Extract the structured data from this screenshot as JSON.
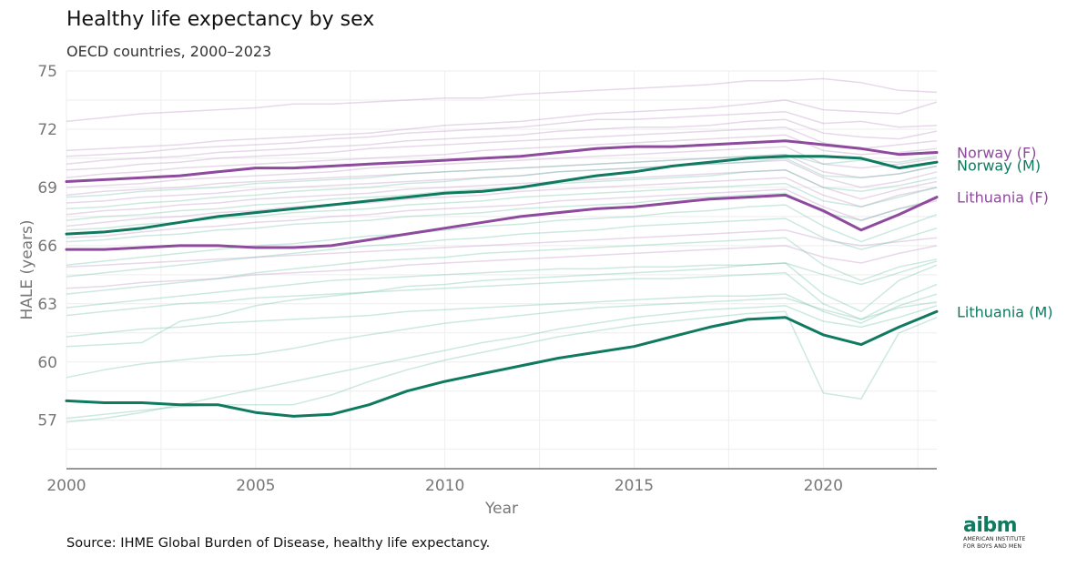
{
  "chart_data": {
    "type": "line",
    "title": "Healthy life expectancy by sex",
    "subtitle": "OECD countries, 2000–2023",
    "xlabel": "Year",
    "ylabel": "HALE (years)",
    "xlim": [
      2000,
      2023
    ],
    "ylim": [
      54.5,
      75
    ],
    "x_ticks": [
      2000,
      2005,
      2010,
      2015,
      2020
    ],
    "y_ticks": [
      57,
      60,
      63,
      66,
      69,
      72,
      75
    ],
    "grid": true,
    "x": [
      2000,
      2001,
      2002,
      2003,
      2004,
      2005,
      2006,
      2007,
      2008,
      2009,
      2010,
      2011,
      2012,
      2013,
      2014,
      2015,
      2016,
      2017,
      2018,
      2019,
      2020,
      2021,
      2022,
      2023
    ],
    "highlighted_series": [
      {
        "name": "Norway (F)",
        "color": "#8e4a9c",
        "values": [
          69.3,
          69.4,
          69.5,
          69.6,
          69.8,
          70.0,
          70.0,
          70.1,
          70.2,
          70.3,
          70.4,
          70.5,
          70.6,
          70.8,
          71.0,
          71.1,
          71.1,
          71.2,
          71.3,
          71.4,
          71.2,
          71.0,
          70.7,
          70.8
        ]
      },
      {
        "name": "Norway (M)",
        "color": "#0f7a5f",
        "values": [
          66.6,
          66.7,
          66.9,
          67.2,
          67.5,
          67.7,
          67.9,
          68.1,
          68.3,
          68.5,
          68.7,
          68.8,
          69.0,
          69.3,
          69.6,
          69.8,
          70.1,
          70.3,
          70.5,
          70.6,
          70.6,
          70.5,
          70.0,
          70.3
        ]
      },
      {
        "name": "Lithuania (F)",
        "color": "#8e4a9c",
        "values": [
          65.8,
          65.8,
          65.9,
          66.0,
          66.0,
          65.9,
          65.9,
          66.0,
          66.3,
          66.6,
          66.9,
          67.2,
          67.5,
          67.7,
          67.9,
          68.0,
          68.2,
          68.4,
          68.5,
          68.6,
          67.8,
          66.8,
          67.6,
          68.5
        ]
      },
      {
        "name": "Lithuania (M)",
        "color": "#0f7a5f",
        "values": [
          58.0,
          57.9,
          57.9,
          57.8,
          57.8,
          57.4,
          57.2,
          57.3,
          57.8,
          58.5,
          59.0,
          59.4,
          59.8,
          60.2,
          60.5,
          60.8,
          61.3,
          61.8,
          62.2,
          62.3,
          61.4,
          60.9,
          61.8,
          62.6
        ]
      }
    ],
    "background_series": [
      {
        "color": "#b98fc4",
        "values": [
          72.4,
          72.6,
          72.8,
          72.9,
          73.0,
          73.1,
          73.3,
          73.3,
          73.4,
          73.5,
          73.6,
          73.6,
          73.8,
          73.9,
          74.0,
          74.1,
          74.2,
          74.3,
          74.5,
          74.5,
          74.6,
          74.4,
          74.0,
          73.9
        ]
      },
      {
        "color": "#b98fc4",
        "values": [
          70.9,
          71.0,
          71.1,
          71.2,
          71.4,
          71.5,
          71.6,
          71.7,
          71.8,
          72.0,
          72.2,
          72.3,
          72.4,
          72.6,
          72.8,
          72.9,
          73.0,
          73.1,
          73.3,
          73.5,
          73.0,
          72.9,
          72.8,
          73.4
        ]
      },
      {
        "color": "#b98fc4",
        "values": [
          70.6,
          70.7,
          70.8,
          71.0,
          71.1,
          71.2,
          71.3,
          71.5,
          71.6,
          71.8,
          71.9,
          72.0,
          72.1,
          72.3,
          72.5,
          72.5,
          72.6,
          72.7,
          72.8,
          72.9,
          72.3,
          72.4,
          72.1,
          72.2
        ]
      },
      {
        "color": "#b98fc4",
        "values": [
          70.2,
          70.4,
          70.5,
          70.6,
          70.8,
          70.9,
          71.0,
          71.1,
          71.2,
          71.4,
          71.5,
          71.6,
          71.7,
          71.9,
          72.0,
          72.1,
          72.1,
          72.2,
          72.4,
          72.5,
          71.8,
          71.6,
          71.5,
          71.9
        ]
      },
      {
        "color": "#b98fc4",
        "values": [
          69.9,
          70.0,
          70.2,
          70.3,
          70.5,
          70.6,
          70.7,
          70.8,
          71.0,
          71.1,
          71.2,
          71.3,
          71.4,
          71.5,
          71.6,
          71.7,
          71.8,
          71.9,
          72.0,
          72.1,
          71.3,
          71.0,
          71.2,
          71.4
        ]
      },
      {
        "color": "#b98fc4",
        "values": [
          69.5,
          69.7,
          69.8,
          70.0,
          70.1,
          70.2,
          70.3,
          70.4,
          70.5,
          70.6,
          70.7,
          70.9,
          71.0,
          71.1,
          71.2,
          71.3,
          71.4,
          71.5,
          71.6,
          71.7,
          70.9,
          70.7,
          70.8,
          71.0
        ]
      },
      {
        "color": "#b98fc4",
        "values": [
          69.0,
          69.1,
          69.2,
          69.4,
          69.5,
          69.6,
          69.7,
          69.8,
          70.0,
          70.1,
          70.2,
          70.3,
          70.4,
          70.5,
          70.6,
          70.7,
          70.8,
          70.9,
          71.0,
          71.1,
          70.2,
          70.0,
          70.2,
          70.5
        ]
      },
      {
        "color": "#b98fc4",
        "values": [
          68.6,
          68.8,
          68.9,
          69.0,
          69.2,
          69.3,
          69.4,
          69.5,
          69.6,
          69.7,
          69.8,
          69.9,
          70.0,
          70.1,
          70.2,
          70.3,
          70.4,
          70.5,
          70.6,
          70.7,
          69.8,
          69.5,
          69.7,
          70.1
        ]
      },
      {
        "color": "#b98fc4",
        "values": [
          68.2,
          68.3,
          68.5,
          68.6,
          68.7,
          68.9,
          69.0,
          69.1,
          69.2,
          69.3,
          69.4,
          69.5,
          69.6,
          69.8,
          69.9,
          70.0,
          70.1,
          70.2,
          70.3,
          70.4,
          69.5,
          69.0,
          69.3,
          69.8
        ]
      },
      {
        "color": "#b98fc4",
        "values": [
          67.6,
          67.8,
          67.9,
          68.1,
          68.2,
          68.4,
          68.5,
          68.6,
          68.7,
          68.9,
          69.0,
          69.1,
          69.2,
          69.3,
          69.4,
          69.5,
          69.6,
          69.7,
          69.8,
          69.9,
          69.0,
          68.4,
          68.9,
          69.3
        ]
      },
      {
        "color": "#b98fc4",
        "values": [
          67.0,
          67.2,
          67.4,
          67.5,
          67.7,
          67.8,
          68.0,
          68.1,
          68.2,
          68.4,
          68.5,
          68.6,
          68.8,
          68.9,
          69.0,
          69.1,
          69.2,
          69.3,
          69.4,
          69.5,
          68.6,
          68.0,
          68.6,
          69.0
        ]
      },
      {
        "color": "#b98fc4",
        "values": [
          66.4,
          66.5,
          66.7,
          66.9,
          67.0,
          67.2,
          67.3,
          67.5,
          67.6,
          67.8,
          67.9,
          68.0,
          68.1,
          68.3,
          68.4,
          68.5,
          68.6,
          68.7,
          68.8,
          68.9,
          68.0,
          67.3,
          67.9,
          68.3
        ]
      },
      {
        "color": "#b98fc4",
        "values": [
          64.9,
          65.0,
          65.1,
          65.2,
          65.3,
          65.4,
          65.5,
          65.6,
          65.7,
          65.8,
          65.9,
          66.0,
          66.1,
          66.2,
          66.3,
          66.4,
          66.5,
          66.6,
          66.7,
          66.8,
          66.3,
          66.0,
          66.2,
          66.4
        ]
      },
      {
        "color": "#b98fc4",
        "values": [
          63.8,
          63.9,
          64.1,
          64.2,
          64.3,
          64.5,
          64.6,
          64.7,
          64.8,
          65.0,
          65.1,
          65.2,
          65.3,
          65.4,
          65.5,
          65.6,
          65.7,
          65.8,
          65.9,
          66.0,
          65.4,
          65.1,
          65.6,
          66.0
        ]
      },
      {
        "color": "#6cbfa6",
        "values": [
          68.5,
          68.6,
          68.8,
          68.9,
          69.0,
          69.2,
          69.3,
          69.4,
          69.5,
          69.7,
          69.8,
          69.9,
          70.0,
          70.1,
          70.2,
          70.3,
          70.4,
          70.5,
          70.6,
          70.7,
          70.2,
          70.4,
          70.3,
          70.6
        ]
      },
      {
        "color": "#6cbfa6",
        "values": [
          67.9,
          68.0,
          68.2,
          68.3,
          68.5,
          68.6,
          68.8,
          68.9,
          69.0,
          69.2,
          69.3,
          69.5,
          69.6,
          69.8,
          69.9,
          70.0,
          70.1,
          70.2,
          70.3,
          70.5,
          69.6,
          69.5,
          69.7,
          70.1
        ]
      },
      {
        "color": "#6cbfa6",
        "values": [
          67.3,
          67.5,
          67.6,
          67.8,
          67.9,
          68.1,
          68.2,
          68.4,
          68.5,
          68.6,
          68.8,
          68.9,
          69.0,
          69.2,
          69.3,
          69.4,
          69.5,
          69.6,
          69.8,
          69.9,
          69.0,
          68.8,
          69.1,
          69.5
        ]
      },
      {
        "color": "#6cbfa6",
        "values": [
          66.8,
          66.9,
          67.1,
          67.2,
          67.4,
          67.5,
          67.7,
          67.8,
          67.9,
          68.1,
          68.2,
          68.3,
          68.5,
          68.6,
          68.7,
          68.8,
          68.9,
          69.0,
          69.1,
          69.2,
          68.3,
          68.0,
          68.5,
          69.0
        ]
      },
      {
        "color": "#6cbfa6",
        "values": [
          66.2,
          66.3,
          66.5,
          66.6,
          66.8,
          66.9,
          67.1,
          67.2,
          67.3,
          67.5,
          67.6,
          67.7,
          67.9,
          68.0,
          68.1,
          68.2,
          68.4,
          68.5,
          68.6,
          68.7,
          67.7,
          67.3,
          67.9,
          68.4
        ]
      },
      {
        "color": "#6cbfa6",
        "values": [
          65.0,
          65.2,
          65.4,
          65.6,
          65.8,
          66.0,
          66.1,
          66.3,
          66.5,
          66.6,
          66.8,
          67.0,
          67.1,
          67.3,
          67.4,
          67.5,
          67.7,
          67.8,
          68.0,
          68.1,
          67.0,
          66.2,
          66.9,
          67.6
        ]
      },
      {
        "color": "#6cbfa6",
        "values": [
          64.4,
          64.6,
          64.8,
          65.0,
          65.2,
          65.4,
          65.6,
          65.8,
          66.0,
          66.1,
          66.3,
          66.4,
          66.6,
          66.7,
          66.8,
          67.0,
          67.1,
          67.2,
          67.3,
          67.4,
          66.4,
          65.8,
          66.3,
          66.9
        ]
      },
      {
        "color": "#6cbfa6",
        "values": [
          63.5,
          63.7,
          63.9,
          64.1,
          64.3,
          64.6,
          64.8,
          65.0,
          65.2,
          65.3,
          65.4,
          65.6,
          65.7,
          65.8,
          65.9,
          66.0,
          66.1,
          66.2,
          66.3,
          66.4,
          65.0,
          64.2,
          64.9,
          65.3
        ]
      },
      {
        "color": "#6cbfa6",
        "values": [
          62.8,
          63.0,
          63.2,
          63.4,
          63.6,
          63.8,
          64.0,
          64.2,
          64.3,
          64.4,
          64.5,
          64.6,
          64.7,
          64.8,
          64.8,
          64.9,
          64.9,
          65.0,
          65.0,
          65.1,
          63.5,
          62.6,
          64.2,
          65.0
        ]
      },
      {
        "color": "#6cbfa6",
        "values": [
          62.4,
          62.6,
          62.8,
          63.0,
          63.1,
          63.3,
          63.4,
          63.5,
          63.6,
          63.7,
          63.8,
          63.9,
          64.0,
          64.1,
          64.2,
          64.3,
          64.3,
          64.4,
          64.5,
          64.6,
          63.0,
          62.2,
          63.2,
          64.0
        ]
      },
      {
        "color": "#6cbfa6",
        "values": [
          61.3,
          61.5,
          61.7,
          61.8,
          62.0,
          62.1,
          62.2,
          62.3,
          62.4,
          62.6,
          62.7,
          62.8,
          62.9,
          63.0,
          63.1,
          63.2,
          63.3,
          63.4,
          63.4,
          63.5,
          62.6,
          62.0,
          62.9,
          63.5
        ]
      },
      {
        "color": "#6cbfa6",
        "values": [
          60.8,
          60.9,
          61.0,
          62.1,
          62.4,
          62.9,
          63.2,
          63.4,
          63.6,
          63.9,
          64.0,
          64.2,
          64.3,
          64.4,
          64.5,
          64.6,
          64.7,
          64.8,
          65.0,
          65.1,
          64.5,
          64.0,
          64.6,
          65.2
        ]
      },
      {
        "color": "#6cbfa6",
        "values": [
          59.2,
          59.6,
          59.9,
          60.1,
          60.3,
          60.4,
          60.7,
          61.1,
          61.4,
          61.7,
          62.0,
          62.2,
          62.4,
          62.6,
          62.8,
          62.9,
          63.0,
          63.1,
          63.2,
          63.3,
          62.7,
          62.2,
          62.8,
          63.1
        ]
      },
      {
        "color": "#6cbfa6",
        "values": [
          57.1,
          57.3,
          57.5,
          57.7,
          57.8,
          57.8,
          57.8,
          58.3,
          59.0,
          59.6,
          60.1,
          60.5,
          60.9,
          61.3,
          61.6,
          61.9,
          62.1,
          62.3,
          62.5,
          62.6,
          58.4,
          58.1,
          61.5,
          62.3
        ]
      },
      {
        "color": "#6cbfa6",
        "values": [
          56.9,
          57.1,
          57.4,
          57.8,
          58.2,
          58.6,
          59.0,
          59.4,
          59.8,
          60.2,
          60.6,
          61.0,
          61.3,
          61.7,
          62.0,
          62.3,
          62.5,
          62.7,
          62.8,
          62.9,
          62.1,
          61.8,
          62.3,
          62.9
        ]
      }
    ]
  },
  "source_note": "Source: IHME Global Burden of Disease, healthy life expectancy.",
  "logo": {
    "word": "aibm",
    "line1": "AMERICAN INSTITUTE",
    "line2": "FOR BOYS AND MEN"
  }
}
